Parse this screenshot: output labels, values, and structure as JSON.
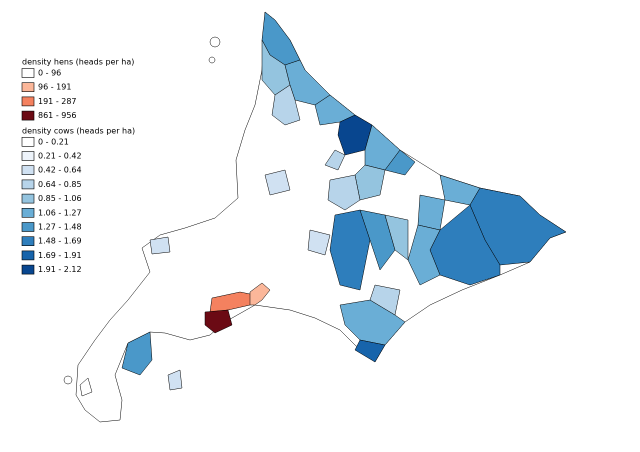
{
  "legends": [
    {
      "title": "density hens (heads per ha)",
      "classes": [
        {
          "label": "0 - 96",
          "color": "#ffffff"
        },
        {
          "label": "96 - 191",
          "color": "#fbb79a"
        },
        {
          "label": "191 - 287",
          "color": "#f4815f"
        },
        {
          "label": "861 - 956",
          "color": "#6b0a14"
        }
      ]
    },
    {
      "title": "density cows (heads per ha)",
      "classes": [
        {
          "label": "0 - 0.21",
          "color": "#ffffff"
        },
        {
          "label": "0.21 - 0.42",
          "color": "#eef4fb"
        },
        {
          "label": "0.42 - 0.64",
          "color": "#d0e1f2"
        },
        {
          "label": "0.64 - 0.85",
          "color": "#b7d4ea"
        },
        {
          "label": "0.85 - 1.06",
          "color": "#94c4df"
        },
        {
          "label": "1.06 - 1.27",
          "color": "#6aaed6"
        },
        {
          "label": "1.27 - 1.48",
          "color": "#4a98c9"
        },
        {
          "label": "1.48 - 1.69",
          "color": "#2e7ebc"
        },
        {
          "label": "1.69 - 1.91",
          "color": "#1764ab"
        },
        {
          "label": "1.91 - 2.12",
          "color": "#08468f"
        }
      ]
    }
  ]
}
